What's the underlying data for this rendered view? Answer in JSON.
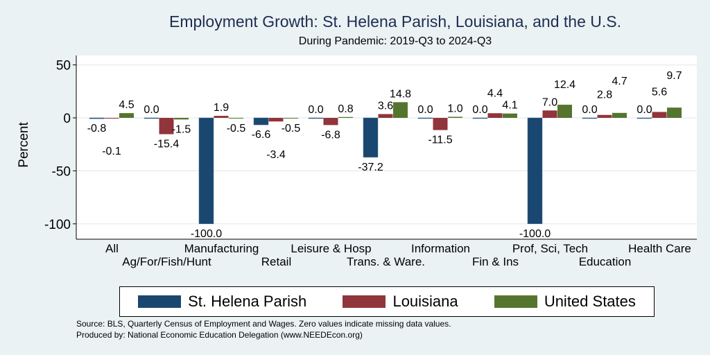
{
  "chart_data": {
    "type": "bar",
    "title": "Employment Growth: St. Helena Parish, Louisiana, and the U.S.",
    "subtitle": "During Pandemic: 2019-Q3 to 2024-Q3",
    "xlabel": "",
    "ylabel": "Percent",
    "ylim": [
      -110,
      60
    ],
    "yticks": [
      50,
      0,
      -50,
      -100
    ],
    "ytick_labels": [
      "50",
      "0",
      "-50",
      "-100"
    ],
    "grid": true,
    "legend_position": "bottom",
    "categories": [
      "All",
      "Ag/For/Fish/Hunt",
      "Manufacturing",
      "Retail",
      "Leisure & Hosp",
      "Trans. & Ware.",
      "Information",
      "Fin & Ins",
      "Prof, Sci, Tech",
      "Education",
      "Health Care"
    ],
    "series": [
      {
        "name": "St. Helena Parish",
        "color": "#1a476f",
        "values": [
          -0.8,
          0.0,
          -100.0,
          -6.6,
          0.0,
          -37.2,
          0.0,
          0.0,
          -100.0,
          0.0,
          0.0
        ],
        "labels": [
          "-0.8",
          "0.0",
          "-100.0",
          "-6.6",
          "0.0",
          "-37.2",
          "0.0",
          "0.0",
          "-100.0",
          "0.0",
          "0.0"
        ]
      },
      {
        "name": "Louisiana",
        "color": "#90353b",
        "values": [
          -0.1,
          -15.4,
          1.9,
          -3.4,
          -6.8,
          3.6,
          -11.5,
          4.4,
          7.0,
          2.8,
          5.6
        ],
        "labels": [
          "-0.1",
          "-15.4",
          "1.9",
          "-3.4",
          "-6.8",
          "3.6",
          "-11.5",
          "4.4",
          "7.0",
          "2.8",
          "5.6"
        ]
      },
      {
        "name": "United States",
        "color": "#55752f",
        "values": [
          4.5,
          -1.5,
          -0.5,
          -0.5,
          0.8,
          14.8,
          1.0,
          4.1,
          12.4,
          4.7,
          9.7
        ],
        "labels": [
          "4.5",
          "-1.5",
          "-0.5",
          "-0.5",
          "0.8",
          "14.8",
          "1.0",
          "4.1",
          "12.4",
          "4.7",
          "9.7"
        ]
      }
    ]
  },
  "notes": {
    "source": "Source: BLS, Quarterly Census of Employment and Wages. Zero values indicate missing data values.",
    "produced": "Produced by: National Economic Education Delegation (www.NEEDEcon.org)"
  }
}
